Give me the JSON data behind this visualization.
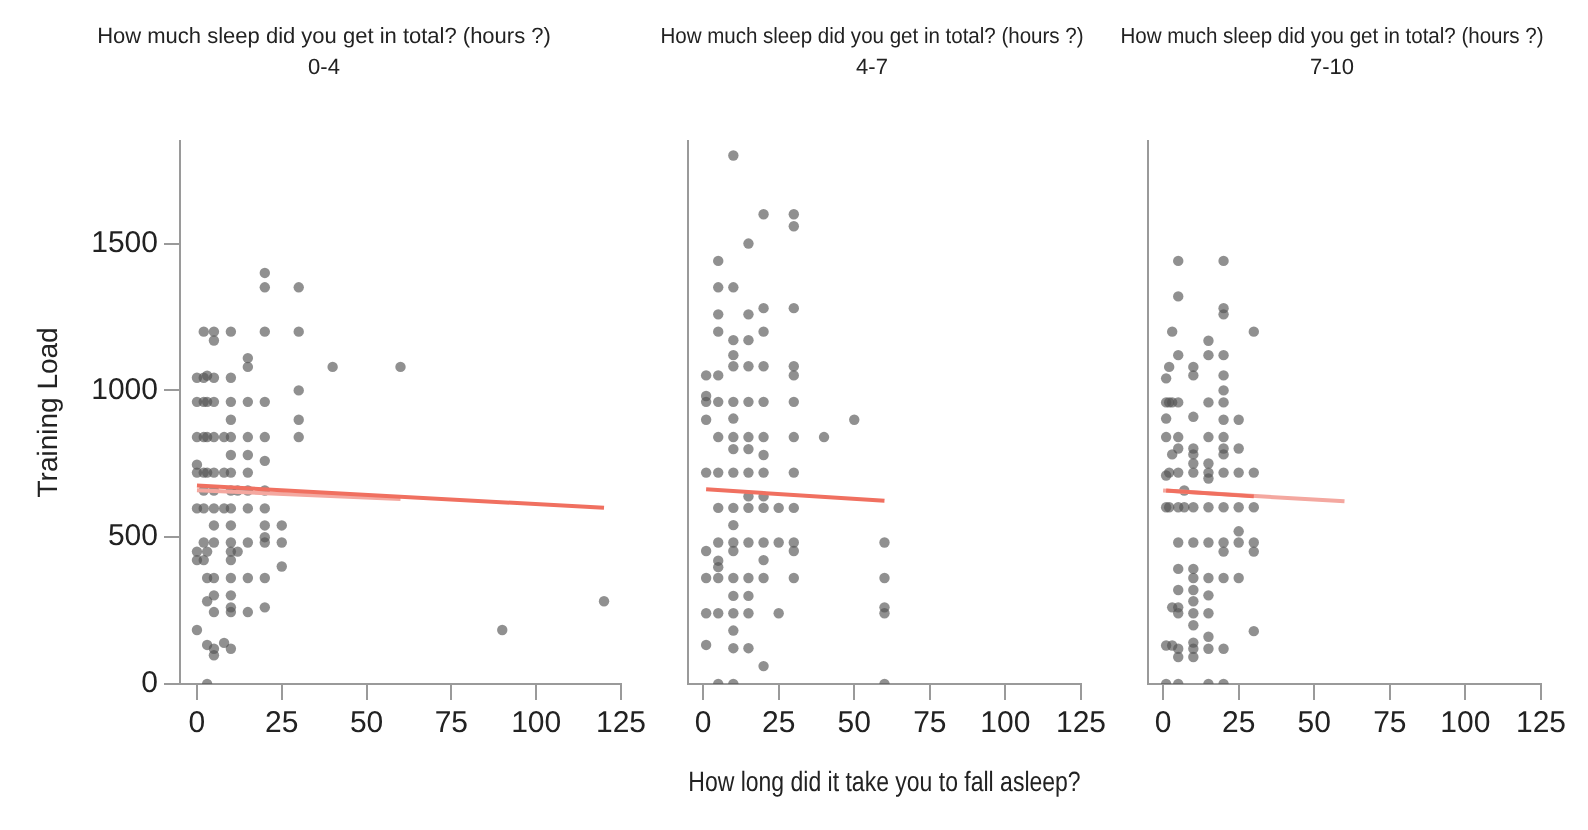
{
  "chart_data": [
    {
      "type": "scatter",
      "title": "How much sleep did you get in total? (hours ?)",
      "subtitle": "0-4",
      "ylabel": "Training Load",
      "xlim": [
        -5,
        125
      ],
      "xticks": [
        0,
        25,
        50,
        75,
        100,
        125
      ],
      "ylim": [
        0,
        1850
      ],
      "yticks": [
        0,
        500,
        1000,
        1500
      ],
      "grid": false,
      "marker": "circle",
      "series": [
        {
          "color": "#555555",
          "x": [
            0,
            0,
            0,
            0,
            0,
            0,
            0,
            0,
            0,
            2,
            2,
            2,
            2,
            2,
            2,
            2,
            2,
            2,
            3,
            3,
            3,
            3,
            3,
            3,
            3,
            3,
            3,
            5,
            5,
            5,
            5,
            5,
            5,
            5,
            5,
            5,
            5,
            5,
            5,
            5,
            5,
            5,
            8,
            8,
            8,
            8,
            10,
            10,
            10,
            10,
            10,
            10,
            10,
            10,
            10,
            10,
            10,
            10,
            10,
            10,
            10,
            10,
            10,
            10,
            12,
            12,
            15,
            15,
            15,
            15,
            15,
            15,
            15,
            15,
            15,
            15,
            15,
            20,
            20,
            20,
            20,
            20,
            20,
            20,
            20,
            20,
            20,
            20,
            20,
            20,
            25,
            25,
            25,
            30,
            30,
            30,
            30,
            30,
            40,
            60,
            90,
            120
          ],
          "values": [
            184,
            422,
            451,
            598,
            720,
            747,
            841,
            961,
            1043,
            1200,
            1043,
            961,
            841,
            720,
            659,
            482,
            422,
            598,
            0,
            133,
            282,
            361,
            451,
            720,
            841,
            961,
            1050,
            98,
            120,
            245,
            302,
            361,
            482,
            540,
            598,
            659,
            720,
            841,
            961,
            1043,
            1200,
            1170,
            140,
            598,
            720,
            841,
            120,
            245,
            261,
            302,
            361,
            422,
            451,
            482,
            540,
            598,
            659,
            720,
            780,
            841,
            900,
            961,
            1043,
            1200,
            451,
            659,
            245,
            361,
            482,
            598,
            659,
            720,
            780,
            841,
            961,
            1080,
            1110,
            261,
            361,
            482,
            500,
            540,
            598,
            659,
            760,
            841,
            961,
            1200,
            1351,
            1400,
            400,
            482,
            540,
            841,
            900,
            1000,
            1200,
            1351,
            1080,
            1080,
            184,
            282
          ]
        },
        {
          "type": "line",
          "marker": "none",
          "color": "#f07060",
          "x": [
            0,
            120
          ],
          "values": [
            676,
            600
          ]
        },
        {
          "type": "line",
          "marker": "none",
          "color": "#f4a8a0",
          "x": [
            0,
            60
          ],
          "values": [
            660,
            630
          ]
        }
      ]
    },
    {
      "type": "scatter",
      "title": "How much sleep did you get in total? (hours ?)",
      "subtitle": "4-7",
      "xlabel": "How long did it take you to fall asleep?",
      "xlim": [
        -5,
        125
      ],
      "xticks": [
        0,
        25,
        50,
        75,
        100,
        125
      ],
      "ylim": [
        0,
        1850
      ],
      "yticks": [
        0,
        500,
        1000,
        1500
      ],
      "grid": false,
      "marker": "circle",
      "tick_labels": "x",
      "series": [
        {
          "color": "#555555",
          "x": [
            1,
            1,
            1,
            1,
            1,
            1,
            1,
            1,
            1,
            5,
            5,
            5,
            5,
            5,
            5,
            5,
            5,
            5,
            5,
            5,
            5,
            5,
            5,
            5,
            10,
            10,
            10,
            10,
            10,
            10,
            10,
            10,
            10,
            10,
            10,
            10,
            10,
            10,
            10,
            10,
            10,
            10,
            10,
            10,
            15,
            15,
            15,
            15,
            15,
            15,
            15,
            15,
            15,
            15,
            15,
            15,
            15,
            15,
            15,
            20,
            20,
            20,
            20,
            20,
            20,
            20,
            20,
            20,
            20,
            20,
            20,
            20,
            20,
            25,
            25,
            25,
            30,
            30,
            30,
            30,
            30,
            30,
            30,
            30,
            30,
            30,
            30,
            30,
            40,
            50,
            60,
            60,
            60,
            60,
            60
          ],
          "values": [
            961,
            900,
            720,
            453,
            361,
            241,
            133,
            1051,
            981,
            1441,
            1351,
            1259,
            1200,
            1051,
            961,
            841,
            720,
            600,
            482,
            361,
            241,
            0,
            420,
            398,
            1800,
            1351,
            1171,
            1120,
            1082,
            961,
            904,
            841,
            800,
            720,
            600,
            541,
            482,
            453,
            361,
            300,
            241,
            182,
            122,
            0,
            1500,
            1259,
            1171,
            1082,
            961,
            841,
            800,
            720,
            639,
            600,
            482,
            361,
            300,
            241,
            122,
            1600,
            1280,
            1200,
            1082,
            961,
            841,
            780,
            720,
            639,
            600,
            482,
            422,
            361,
            61,
            600,
            482,
            241,
            1600,
            1559,
            1280,
            1082,
            1051,
            961,
            841,
            720,
            600,
            482,
            453,
            361,
            841,
            900,
            482,
            361,
            261,
            241,
            0
          ]
        },
        {
          "type": "line",
          "marker": "none",
          "color": "#f07060",
          "x": [
            1,
            60
          ],
          "values": [
            663,
            624
          ]
        }
      ]
    },
    {
      "type": "scatter",
      "title": "How much sleep did you get in total? (hours ?)",
      "subtitle": "7-10",
      "xlim": [
        -5,
        125
      ],
      "xticks": [
        0,
        25,
        50,
        75,
        100,
        125
      ],
      "ylim": [
        0,
        1850
      ],
      "yticks": [
        0,
        500,
        1000,
        1500
      ],
      "grid": false,
      "marker": "circle",
      "tick_labels": "x",
      "series": [
        {
          "color": "#555555",
          "x": [
            1,
            1,
            1,
            1,
            1,
            1,
            1,
            1,
            2,
            2,
            2,
            2,
            3,
            3,
            3,
            3,
            3,
            5,
            5,
            5,
            5,
            5,
            5,
            5,
            5,
            5,
            5,
            5,
            5,
            5,
            5,
            5,
            5,
            7,
            7,
            10,
            10,
            10,
            10,
            10,
            10,
            10,
            10,
            10,
            10,
            10,
            10,
            10,
            10,
            10,
            10,
            10,
            10,
            15,
            15,
            15,
            15,
            15,
            15,
            15,
            15,
            15,
            15,
            15,
            15,
            15,
            15,
            15,
            20,
            20,
            20,
            20,
            20,
            20,
            20,
            20,
            20,
            20,
            20,
            20,
            20,
            20,
            20,
            20,
            20,
            20,
            25,
            25,
            25,
            25,
            25,
            25,
            25,
            30,
            30,
            30,
            30,
            30,
            30
          ],
          "values": [
            1041,
            959,
            904,
            841,
            710,
            602,
            131,
            0,
            1080,
            959,
            720,
            602,
            1200,
            959,
            782,
            261,
            131,
            1441,
            1320,
            1120,
            959,
            841,
            802,
            720,
            602,
            482,
            392,
            320,
            261,
            241,
            120,
            92,
            0,
            602,
            659,
            1080,
            1051,
            910,
            802,
            782,
            751,
            720,
            602,
            482,
            392,
            361,
            320,
            282,
            241,
            200,
            141,
            120,
            92,
            1169,
            1120,
            959,
            841,
            751,
            720,
            700,
            602,
            482,
            361,
            302,
            241,
            161,
            120,
            0,
            1441,
            1280,
            1259,
            1120,
            1051,
            1000,
            959,
            900,
            841,
            802,
            782,
            720,
            602,
            482,
            451,
            361,
            120,
            0,
            900,
            802,
            720,
            602,
            520,
            482,
            361,
            1200,
            720,
            602,
            482,
            451,
            180
          ]
        },
        {
          "type": "line",
          "marker": "none",
          "color": "#f07060",
          "x": [
            1,
            30
          ],
          "values": [
            659,
            639
          ]
        },
        {
          "type": "line",
          "marker": "none",
          "color": "#f4a8a0",
          "x": [
            0,
            60
          ],
          "values": [
            659,
            622
          ]
        }
      ]
    }
  ]
}
